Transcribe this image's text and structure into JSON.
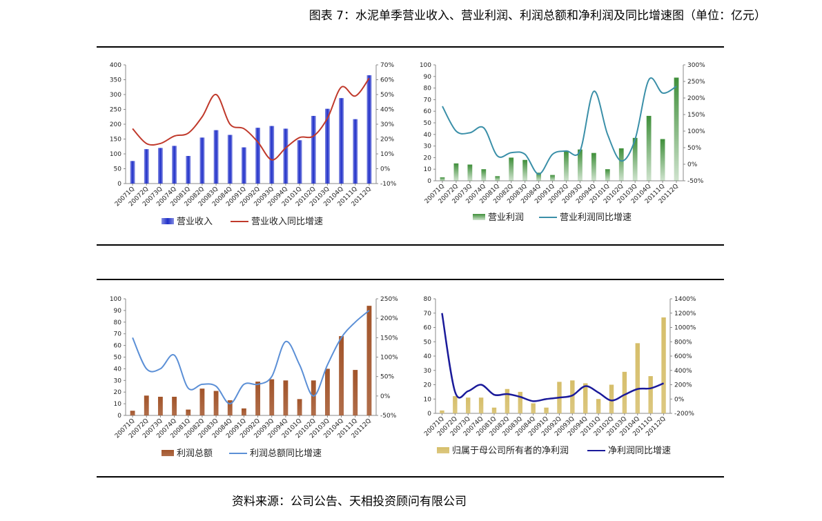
{
  "title": "图表 7：水泥单季营业收入、营业利润、利润总额和净利润及同比增速图（单位：亿元）",
  "source": "资料来源：公司公告、天相投资顾问有限公司",
  "colors": {
    "rev_bar": "#1f2fc9",
    "rev_line": "#c0392b",
    "op_bar": "#3f8f3a",
    "op_line": "#3a8fa8",
    "tp_bar": "#a2542a",
    "tp_line": "#5b8fd6",
    "np_bar": "#d6be6a",
    "np_line": "#1a1a9a"
  },
  "chart_data": [
    {
      "type": "bar",
      "id": "revenue",
      "categories": [
        "20071Q",
        "20072Q",
        "20073Q",
        "20074Q",
        "20081Q",
        "20082Q",
        "20083Q",
        "20084Q",
        "20091Q",
        "20092Q",
        "20093Q",
        "20094Q",
        "20101Q",
        "20102Q",
        "20103Q",
        "20104Q",
        "20111Q",
        "20112Q"
      ],
      "series": [
        {
          "name": "营业收入",
          "type": "bar",
          "axis": "left",
          "values": [
            76,
            116,
            120,
            127,
            93,
            155,
            180,
            164,
            122,
            188,
            194,
            185,
            146,
            228,
            252,
            288,
            217,
            365
          ]
        },
        {
          "name": "营业收入同比增速",
          "type": "line",
          "axis": "right",
          "values": [
            27,
            17,
            17,
            22,
            24,
            35,
            50,
            30,
            27,
            18,
            6,
            14,
            21,
            22,
            34,
            55,
            49,
            61
          ]
        }
      ],
      "ylim": [
        0,
        400
      ],
      "yticks": [
        "0",
        "50",
        "100",
        "150",
        "200",
        "250",
        "300",
        "350",
        "400"
      ],
      "y2lim": [
        -10,
        70
      ],
      "y2ticks": [
        "-10%",
        "0%",
        "10%",
        "20%",
        "30%",
        "40%",
        "50%",
        "60%",
        "70%"
      ]
    },
    {
      "type": "bar",
      "id": "operating_profit",
      "categories": [
        "20071Q",
        "20072Q",
        "20073Q",
        "20074Q",
        "20081Q",
        "20082Q",
        "20083Q",
        "20084Q",
        "20091Q",
        "20092Q",
        "20093Q",
        "20094Q",
        "20101Q",
        "20102Q",
        "20103Q",
        "20104Q",
        "20111Q",
        "20112Q"
      ],
      "series": [
        {
          "name": "营业利润",
          "type": "bar",
          "axis": "left",
          "values": [
            3,
            15,
            14,
            10,
            4,
            20,
            18,
            7,
            5,
            26,
            27,
            24,
            10,
            28,
            37,
            56,
            36,
            89
          ]
        },
        {
          "name": "营业利润同比增速",
          "type": "line",
          "axis": "right",
          "values": [
            175,
            100,
            95,
            110,
            25,
            35,
            30,
            -30,
            30,
            40,
            40,
            220,
            90,
            10,
            75,
            255,
            215,
            235
          ]
        }
      ],
      "ylim": [
        0,
        100
      ],
      "yticks": [
        "0",
        "10",
        "20",
        "30",
        "40",
        "50",
        "60",
        "70",
        "80",
        "90",
        "100"
      ],
      "y2lim": [
        -50,
        300
      ],
      "y2ticks": [
        "-50%",
        "0%",
        "50%",
        "100%",
        "150%",
        "200%",
        "250%",
        "300%"
      ]
    },
    {
      "type": "bar",
      "id": "total_profit",
      "categories": [
        "20071Q",
        "20072Q",
        "20073Q",
        "20074Q",
        "20081Q",
        "20082Q",
        "20083Q",
        "20084Q",
        "20091Q",
        "20092Q",
        "20093Q",
        "20094Q",
        "20101Q",
        "20102Q",
        "20103Q",
        "20104Q",
        "20111Q",
        "20112Q"
      ],
      "series": [
        {
          "name": "利润总额",
          "type": "bar",
          "axis": "left",
          "values": [
            4,
            17,
            16,
            16,
            5,
            23,
            21,
            13,
            6,
            29,
            31,
            30,
            14,
            30,
            40,
            68,
            39,
            94
          ]
        },
        {
          "name": "利润总额同比增速",
          "type": "line",
          "axis": "right",
          "values": [
            150,
            70,
            70,
            105,
            20,
            30,
            25,
            -20,
            30,
            30,
            50,
            140,
            80,
            0,
            80,
            150,
            190,
            220
          ]
        }
      ],
      "ylim": [
        0,
        100
      ],
      "yticks": [
        "0",
        "10",
        "20",
        "30",
        "40",
        "50",
        "60",
        "70",
        "80",
        "90",
        "100"
      ],
      "y2lim": [
        -50,
        250
      ],
      "y2ticks": [
        "-50%",
        "0%",
        "50%",
        "100%",
        "150%",
        "200%",
        "250%"
      ]
    },
    {
      "type": "bar",
      "id": "net_profit",
      "categories": [
        "20071Q",
        "20072Q",
        "20073Q",
        "20074Q",
        "20081Q",
        "20082Q",
        "20083Q",
        "20084Q",
        "20091Q",
        "20092Q",
        "20093Q",
        "20094Q",
        "20101Q",
        "20102Q",
        "20103Q",
        "20104Q",
        "20111Q",
        "20112Q"
      ],
      "series": [
        {
          "name": "归属于母公司所有者的净利润",
          "type": "bar",
          "axis": "left",
          "values": [
            2,
            12,
            11,
            11,
            4,
            17,
            15,
            7,
            4,
            22,
            23,
            21,
            10,
            20,
            29,
            49,
            26,
            67
          ]
        },
        {
          "name": "净利润同比增速",
          "type": "line",
          "axis": "right",
          "values": [
            1200,
            100,
            110,
            200,
            60,
            70,
            30,
            -30,
            0,
            20,
            50,
            180,
            90,
            -20,
            60,
            140,
            150,
            220
          ]
        }
      ],
      "ylim": [
        0,
        80
      ],
      "yticks": [
        "0",
        "10",
        "20",
        "30",
        "40",
        "50",
        "60",
        "70",
        "80"
      ],
      "y2lim": [
        -200,
        1400
      ],
      "y2ticks": [
        "-200%",
        "0%",
        "200%",
        "400%",
        "600%",
        "800%",
        "1000%",
        "1200%",
        "1400%"
      ]
    }
  ]
}
